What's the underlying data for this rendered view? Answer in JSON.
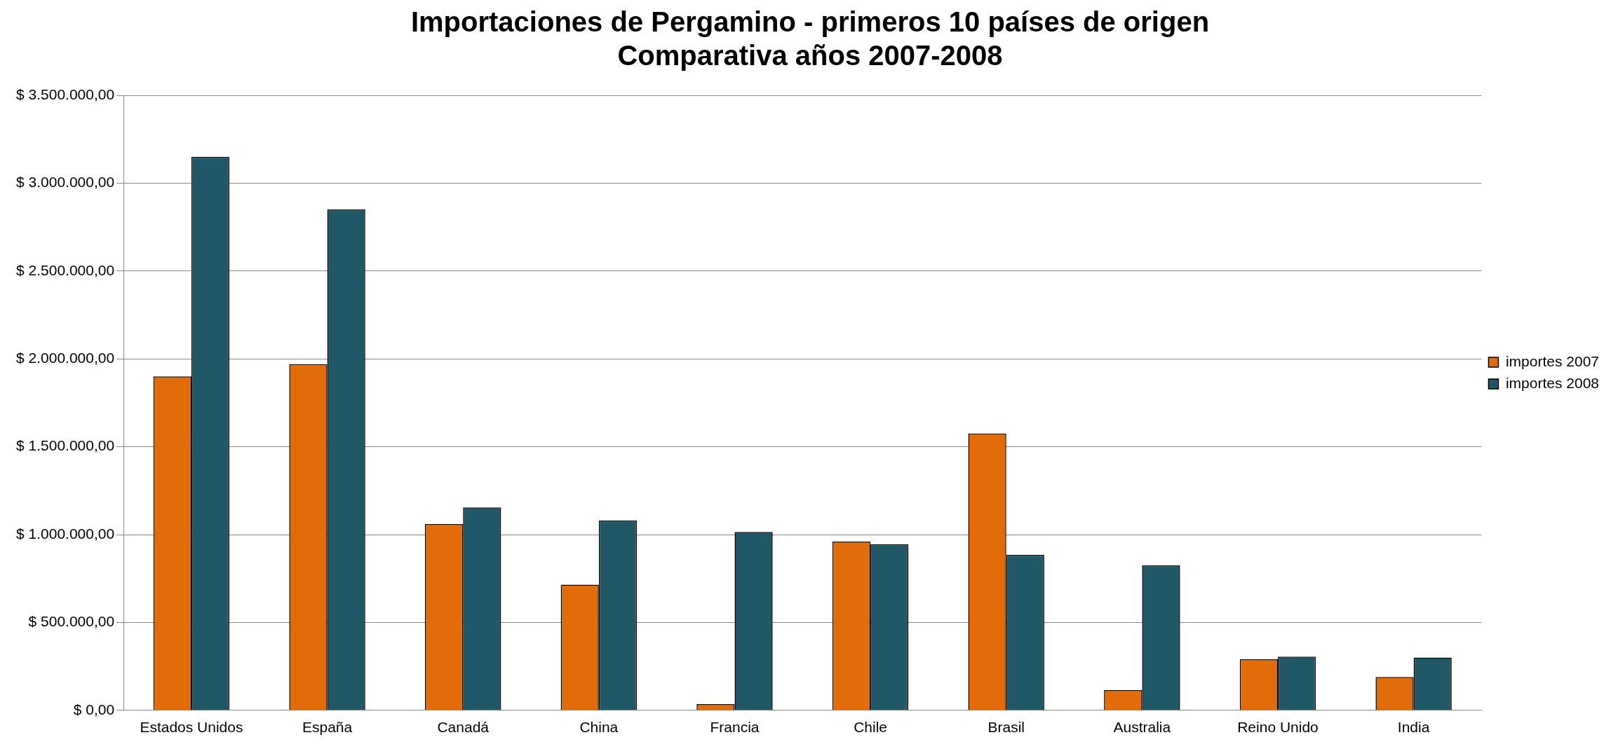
{
  "chart_data": {
    "type": "bar",
    "title": "Importaciones de Pergamino - primeros 10 países de origen\nComparativa años 2007-2008",
    "categories": [
      "Estados Unidos",
      "España",
      "Canadá",
      "China",
      "Francia",
      "Chile",
      "Brasil",
      "Australia",
      "Reino Unido",
      "India"
    ],
    "series": [
      {
        "name": "importes 2007",
        "color": "#e36c0a",
        "values": [
          1900000,
          1970000,
          1060000,
          715000,
          35000,
          960000,
          1575000,
          115000,
          290000,
          190000
        ]
      },
      {
        "name": "importes 2008",
        "color": "#215868",
        "values": [
          3150000,
          2850000,
          1155000,
          1080000,
          1015000,
          945000,
          885000,
          825000,
          305000,
          300000
        ]
      }
    ],
    "ylim": [
      0,
      3500000
    ],
    "yticks": [
      {
        "value": 0,
        "label": "$ 0,00"
      },
      {
        "value": 500000,
        "label": "$ 500.000,00"
      },
      {
        "value": 1000000,
        "label": "$ 1.000.000,00"
      },
      {
        "value": 1500000,
        "label": "$ 1.500.000,00"
      },
      {
        "value": 2000000,
        "label": "$ 2.000.000,00"
      },
      {
        "value": 2500000,
        "label": "$ 2.500.000,00"
      },
      {
        "value": 3000000,
        "label": "$ 3.000.000,00"
      },
      {
        "value": 3500000,
        "label": "$ 3.500.000,00"
      }
    ],
    "grid": "y",
    "legend": "right"
  }
}
